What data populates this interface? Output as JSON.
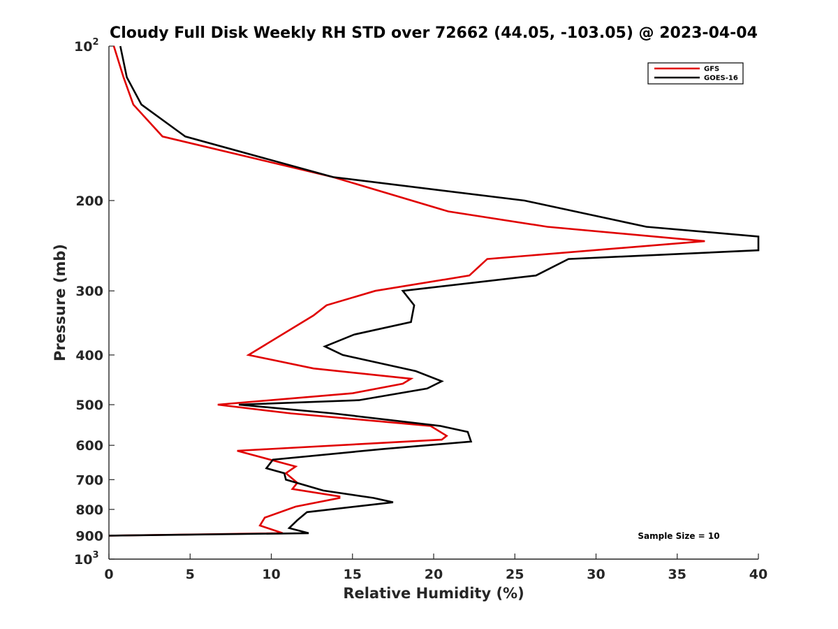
{
  "chart_data": {
    "type": "line",
    "title": "Cloudy Full Disk Weekly RH STD over 72662 (44.05, -103.05) @ 2023-04-04",
    "xlabel": "Relative Humidity (%)",
    "ylabel": "Pressure (mb)",
    "xlim": [
      0,
      40
    ],
    "ylim": [
      100,
      1000
    ],
    "y_scale": "log",
    "y_reversed": true,
    "grid": false,
    "x_ticks": [
      "0",
      "5",
      "10",
      "15",
      "20",
      "25",
      "30",
      "35",
      "40"
    ],
    "y_ticks": [
      {
        "value": 100,
        "label": "10",
        "exponent": "2"
      },
      {
        "value": 200,
        "label": "200"
      },
      {
        "value": 300,
        "label": "300"
      },
      {
        "value": 400,
        "label": "400"
      },
      {
        "value": 500,
        "label": "500"
      },
      {
        "value": 600,
        "label": "600"
      },
      {
        "value": 700,
        "label": "700"
      },
      {
        "value": 800,
        "label": "800"
      },
      {
        "value": 900,
        "label": "900"
      },
      {
        "value": 1000,
        "label": "10",
        "exponent": "3"
      }
    ],
    "legend": {
      "position": "top-right"
    },
    "annotation": "Sample Size = 10",
    "series": [
      {
        "name": "GFS",
        "color": "#e00000",
        "points": [
          [
            0.3,
            100
          ],
          [
            0.9,
            115
          ],
          [
            1.5,
            130
          ],
          [
            3.3,
            150
          ],
          [
            13.8,
            180
          ],
          [
            20.9,
            210
          ],
          [
            27,
            225
          ],
          [
            36.7,
            240
          ],
          [
            23.3,
            260
          ],
          [
            22.2,
            280
          ],
          [
            16.4,
            300
          ],
          [
            13.4,
            320
          ],
          [
            12.6,
            335
          ],
          [
            8.6,
            400
          ],
          [
            12.6,
            425
          ],
          [
            18.6,
            445
          ],
          [
            18.1,
            455
          ],
          [
            15,
            475
          ],
          [
            6.7,
            500
          ],
          [
            11.2,
            520
          ],
          [
            19.8,
            550
          ],
          [
            20.8,
            575
          ],
          [
            20.5,
            585
          ],
          [
            7.9,
            615
          ],
          [
            11.5,
            660
          ],
          [
            10.9,
            680
          ],
          [
            11.6,
            710
          ],
          [
            11.3,
            730
          ],
          [
            14.2,
            755
          ],
          [
            14.2,
            760
          ],
          [
            11.5,
            790
          ],
          [
            9.6,
            830
          ],
          [
            9.3,
            860
          ],
          [
            10.7,
            890
          ],
          [
            0,
            900
          ]
        ]
      },
      {
        "name": "GOES-16",
        "color": "#000000",
        "points": [
          [
            0.7,
            100
          ],
          [
            1.1,
            115
          ],
          [
            2,
            130
          ],
          [
            4.7,
            150
          ],
          [
            13.8,
            180
          ],
          [
            25.6,
            200
          ],
          [
            33.1,
            225
          ],
          [
            40,
            235
          ],
          [
            40,
            250
          ],
          [
            28.3,
            260
          ],
          [
            26.3,
            280
          ],
          [
            18.1,
            300
          ],
          [
            18.8,
            320
          ],
          [
            18.6,
            345
          ],
          [
            15.1,
            365
          ],
          [
            13.3,
            385
          ],
          [
            14.4,
            400
          ],
          [
            18.9,
            430
          ],
          [
            20.5,
            450
          ],
          [
            19.6,
            465
          ],
          [
            15.4,
            490
          ],
          [
            8,
            500
          ],
          [
            13.8,
            520
          ],
          [
            20.4,
            550
          ],
          [
            22.1,
            565
          ],
          [
            22.3,
            590
          ],
          [
            16.9,
            610
          ],
          [
            10.1,
            640
          ],
          [
            9.7,
            665
          ],
          [
            10.8,
            680
          ],
          [
            10.9,
            700
          ],
          [
            13.2,
            735
          ],
          [
            16.3,
            760
          ],
          [
            17.5,
            775
          ],
          [
            12.2,
            810
          ],
          [
            11.6,
            840
          ],
          [
            11.1,
            870
          ],
          [
            12.3,
            890
          ],
          [
            0,
            900
          ]
        ]
      }
    ]
  }
}
